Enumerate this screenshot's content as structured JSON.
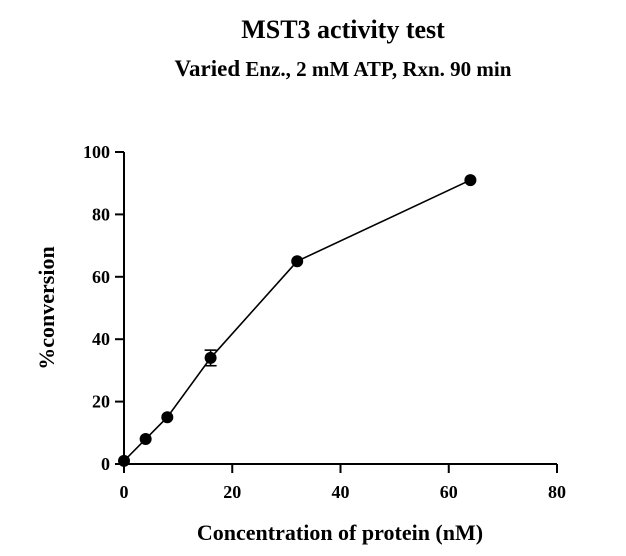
{
  "chart_data": {
    "type": "scatter",
    "title": "MST3 activity test",
    "subtitle": {
      "lead": "Varied",
      "rest": " Enz., 2 mM ATP, Rxn. 90 min"
    },
    "xlabel": "Concentration of protein (nM)",
    "ylabel": "%conversion",
    "xlim": [
      0,
      80
    ],
    "ylim": [
      0,
      100
    ],
    "xticks": [
      0,
      20,
      40,
      60,
      80
    ],
    "yticks": [
      0,
      20,
      40,
      60,
      80,
      100
    ],
    "grid": false,
    "connected": true,
    "series": [
      {
        "x": [
          0,
          4,
          8,
          16,
          32,
          64
        ],
        "y": [
          1,
          8,
          15,
          34,
          65,
          91
        ],
        "error": [
          0,
          0,
          0,
          2.5,
          0,
          0
        ]
      }
    ],
    "colors": {
      "line": "#000000",
      "marker": "#000000"
    }
  }
}
